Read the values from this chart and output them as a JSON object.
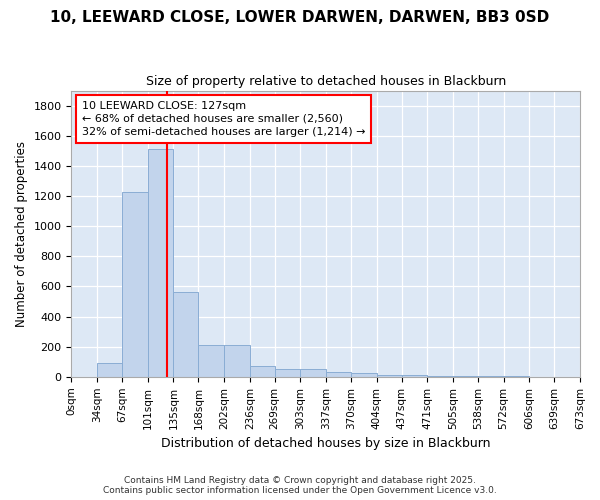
{
  "title": "10, LEEWARD CLOSE, LOWER DARWEN, DARWEN, BB3 0SD",
  "subtitle": "Size of property relative to detached houses in Blackburn",
  "xlabel": "Distribution of detached houses by size in Blackburn",
  "ylabel": "Number of detached properties",
  "fig_facecolor": "#ffffff",
  "ax_facecolor": "#dde8f5",
  "bar_color": "#c2d4ec",
  "bar_edge_color": "#8aadd4",
  "grid_color": "#ffffff",
  "bin_edges": [
    0,
    34,
    67,
    101,
    135,
    168,
    202,
    236,
    269,
    303,
    337,
    370,
    404,
    437,
    471,
    505,
    538,
    572,
    606,
    639,
    673
  ],
  "bar_heights": [
    0,
    95,
    1230,
    1510,
    565,
    210,
    210,
    70,
    55,
    50,
    35,
    25,
    15,
    10,
    5,
    5,
    3,
    3,
    2,
    2
  ],
  "ylim": [
    0,
    1900
  ],
  "yticks": [
    0,
    200,
    400,
    600,
    800,
    1000,
    1200,
    1400,
    1600,
    1800
  ],
  "red_line_x": 127,
  "annotation_line1": "10 LEEWARD CLOSE: 127sqm",
  "annotation_line2": "← 68% of detached houses are smaller (2,560)",
  "annotation_line3": "32% of semi-detached houses are larger (1,214) →",
  "footer_line1": "Contains HM Land Registry data © Crown copyright and database right 2025.",
  "footer_line2": "Contains public sector information licensed under the Open Government Licence v3.0.",
  "tick_labels": [
    "0sqm",
    "34sqm",
    "67sqm",
    "101sqm",
    "135sqm",
    "168sqm",
    "202sqm",
    "236sqm",
    "269sqm",
    "303sqm",
    "337sqm",
    "370sqm",
    "404sqm",
    "437sqm",
    "471sqm",
    "505sqm",
    "538sqm",
    "572sqm",
    "606sqm",
    "639sqm",
    "673sqm"
  ]
}
